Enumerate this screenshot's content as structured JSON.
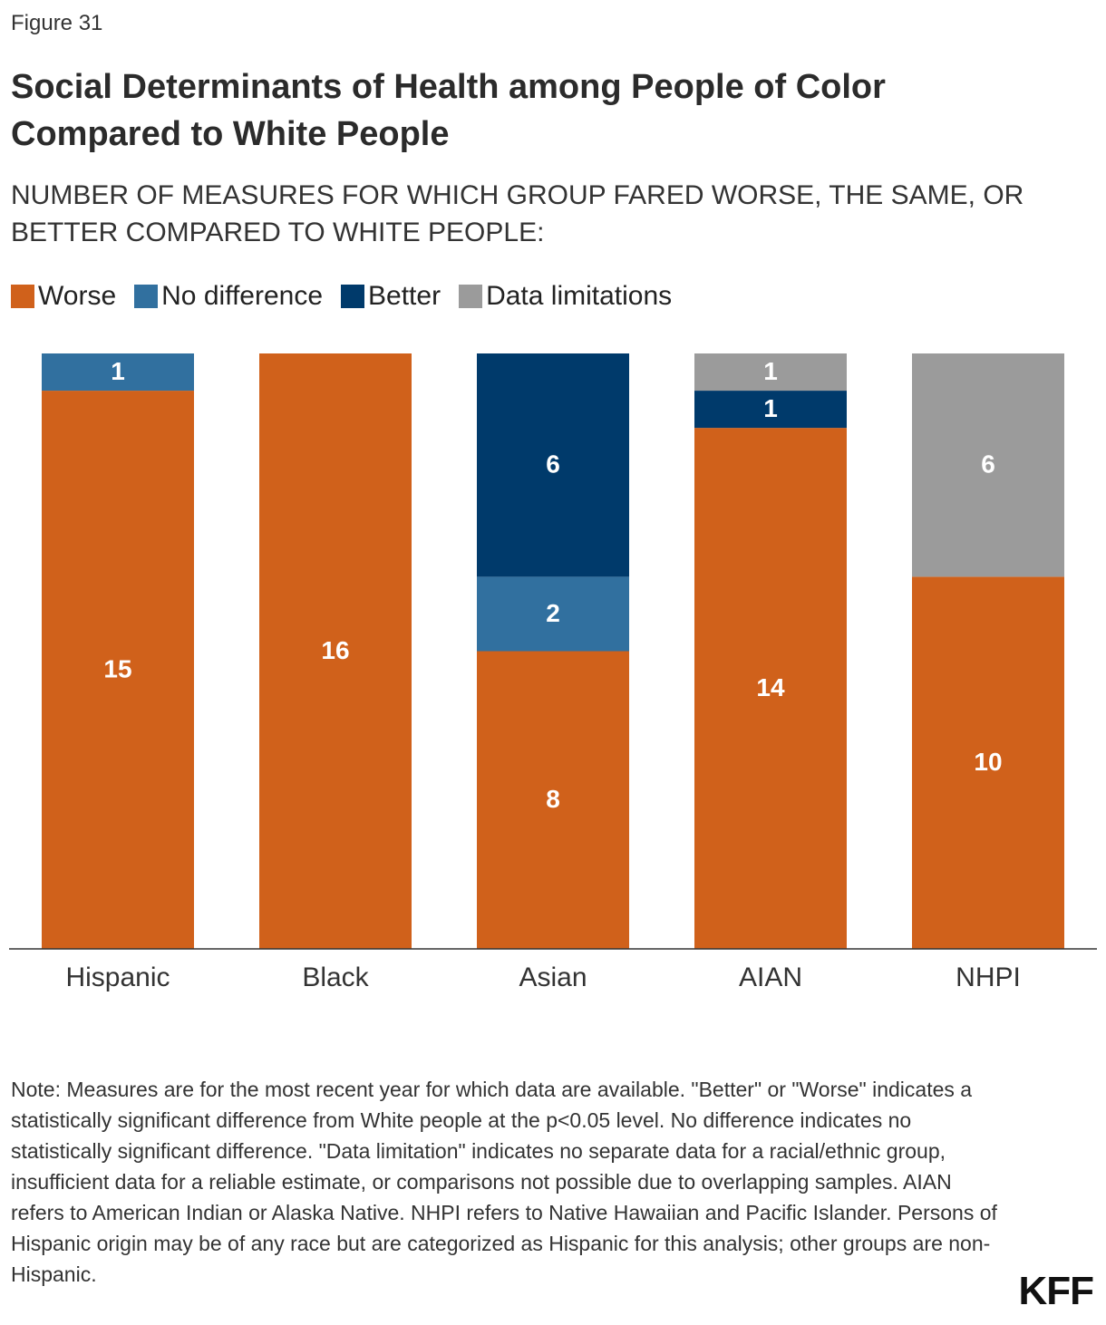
{
  "chart_data": {
    "type": "stacked-bar",
    "figure_label": "Figure 31",
    "title": "Social Determinants of Health among People of Color Compared to White People",
    "subtitle": "NUMBER OF MEASURES FOR WHICH GROUP FARED WORSE, THE SAME, OR BETTER COMPARED TO WHITE PEOPLE:",
    "categories": [
      "Hispanic",
      "Black",
      "Asian",
      "AIAN",
      "NHPI"
    ],
    "series": [
      {
        "name": "Worse",
        "color": "#d0611b",
        "values": [
          15,
          16,
          8,
          14,
          10
        ]
      },
      {
        "name": "No difference",
        "color": "#31709f",
        "values": [
          1,
          null,
          2,
          null,
          null
        ]
      },
      {
        "name": "Better",
        "color": "#003a6b",
        "values": [
          null,
          null,
          6,
          1,
          null
        ]
      },
      {
        "name": "Data limitations",
        "color": "#9b9b9b",
        "values": [
          null,
          null,
          null,
          1,
          6
        ]
      }
    ],
    "ylim": [
      0,
      16
    ],
    "note": "Note: Measures are for the most recent year for which data are available. \"Better\" or \"Worse\" indicates a statistically significant difference from White people at the p<0.05 level. No difference indicates no statistically significant difference. \"Data limitation\" indicates no separate data for a racial/ethnic group, insufficient data for a reliable estimate, or comparisons not possible due to overlapping samples. AIAN refers to American Indian or Alaska Native. NHPI refers to Native Hawaiian and Pacific Islander. Persons of Hispanic origin may be of any race but are categorized as Hispanic for this analysis; other groups are non-Hispanic.",
    "source_logo": "KFF"
  }
}
